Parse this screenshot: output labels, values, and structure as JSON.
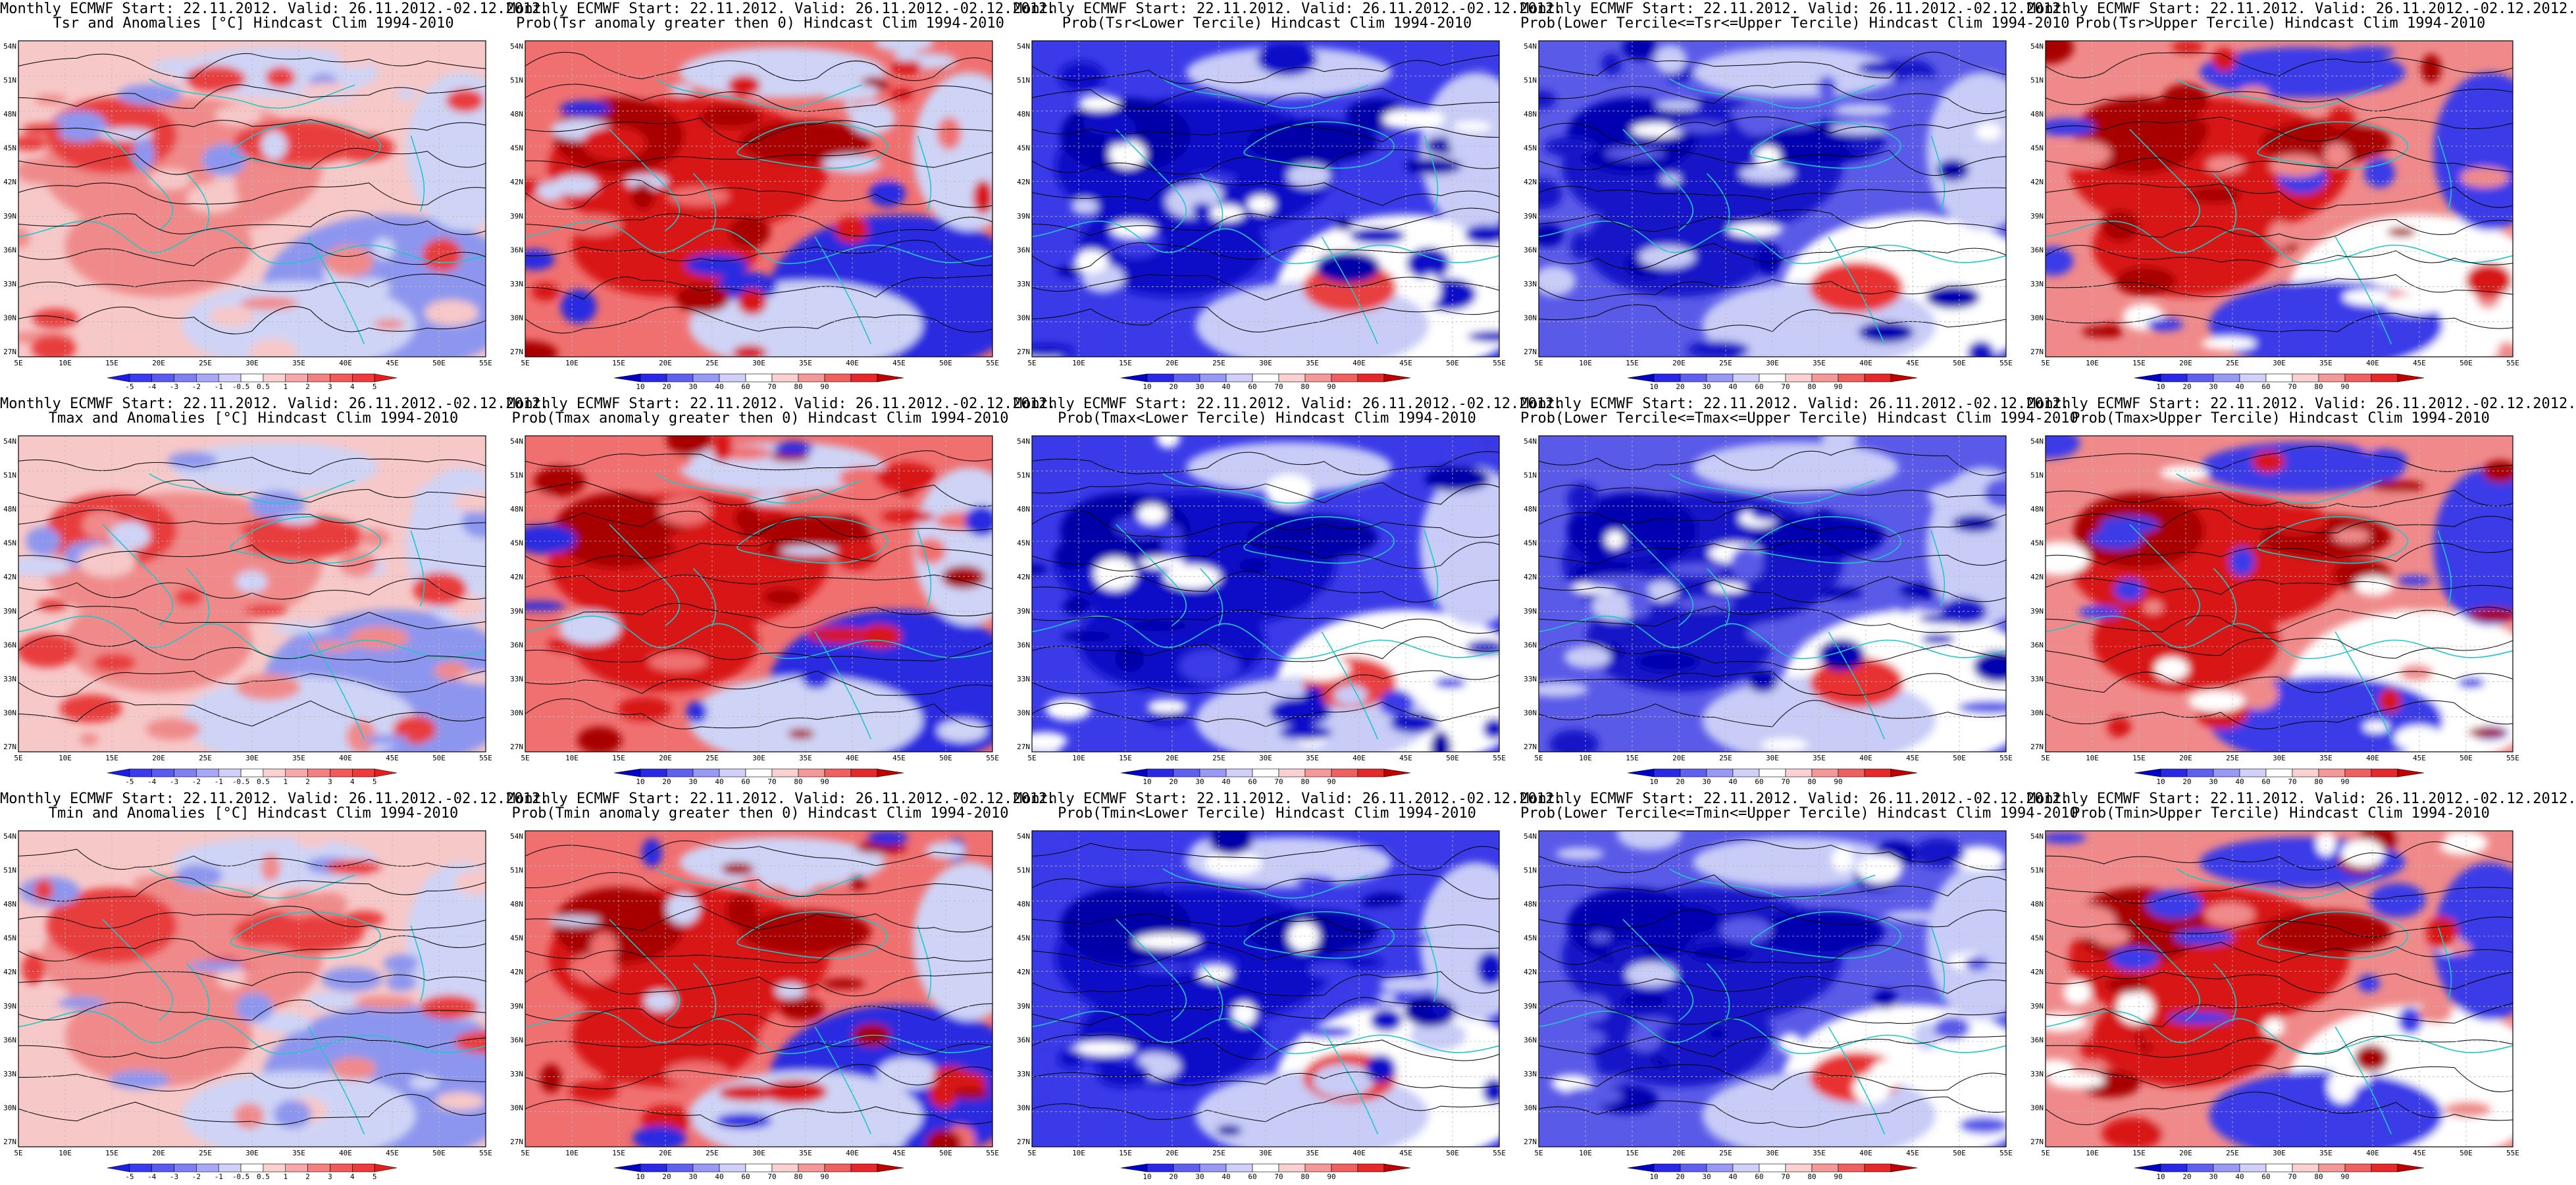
{
  "rows": [
    {
      "variable": "Tsr",
      "panels": [
        {
          "kind": "anom",
          "line1": "Monthly ECMWF Start: 22.11.2012. Valid: 26.11.2012.-02.12.2012.",
          "line2": "Tsr and Anomalies [°C] Hindcast Clim 1994-2010"
        },
        {
          "kind": "pos",
          "line1": "Monthly ECMWF Start: 22.11.2012. Valid: 26.11.2012.-02.12.2012.",
          "line2": "Prob(Tsr anomaly greater then 0) Hindcast Clim 1994-2010"
        },
        {
          "kind": "low",
          "line1": "Monthly ECMWF Start: 22.11.2012. Valid: 26.11.2012.-02.12.2012.",
          "line2": "Prob(Tsr<Lower Tercile) Hindcast Clim 1994-2010"
        },
        {
          "kind": "mid",
          "line1": "Monthly ECMWF Start: 22.11.2012. Valid: 26.11.2012.-02.12.2012.",
          "line2": "Prob(Lower Tercile<=Tsr<=Upper Tercile) Hindcast Clim 1994-2010"
        },
        {
          "kind": "up",
          "line1": "Monthly ECMWF Start: 22.11.2012. Valid: 26.11.2012.-02.12.2012.",
          "line2": "Prob(Tsr>Upper Tercile) Hindcast Clim 1994-2010"
        }
      ]
    },
    {
      "variable": "Tmax",
      "panels": [
        {
          "kind": "anom",
          "line1": "Monthly ECMWF Start: 22.11.2012. Valid: 26.11.2012.-02.12.2012.",
          "line2": "Tmax and Anomalies [°C] Hindcast Clim 1994-2010"
        },
        {
          "kind": "pos",
          "line1": "Monthly ECMWF Start: 22.11.2012. Valid: 26.11.2012.-02.12.2012.",
          "line2": "Prob(Tmax anomaly greater then 0) Hindcast Clim 1994-2010"
        },
        {
          "kind": "low",
          "line1": "Monthly ECMWF Start: 22.11.2012. Valid: 26.11.2012.-02.12.2012.",
          "line2": "Prob(Tmax<Lower Tercile) Hindcast Clim 1994-2010"
        },
        {
          "kind": "mid",
          "line1": "Monthly ECMWF Start: 22.11.2012. Valid: 26.11.2012.-02.12.2012.",
          "line2": "Prob(Lower Tercile<=Tmax<=Upper Tercile) Hindcast Clim 1994-2010"
        },
        {
          "kind": "up",
          "line1": "Monthly ECMWF Start: 22.11.2012. Valid: 26.11.2012.-02.12.2012.",
          "line2": "Prob(Tmax>Upper Tercile) Hindcast Clim 1994-2010"
        }
      ]
    },
    {
      "variable": "Tmin",
      "panels": [
        {
          "kind": "anom",
          "line1": "Monthly ECMWF Start: 22.11.2012. Valid: 26.11.2012.-02.12.2012.",
          "line2": "Tmin and Anomalies [°C] Hindcast Clim 1994-2010"
        },
        {
          "kind": "pos",
          "line1": "Monthly ECMWF Start: 22.11.2012. Valid: 26.11.2012.-02.12.2012.",
          "line2": "Prob(Tmin anomaly greater then 0) Hindcast Clim 1994-2010"
        },
        {
          "kind": "low",
          "line1": "Monthly ECMWF Start: 22.11.2012. Valid: 26.11.2012.-02.12.2012.",
          "line2": "Prob(Tmin<Lower Tercile) Hindcast Clim 1994-2010"
        },
        {
          "kind": "mid",
          "line1": "Monthly ECMWF Start: 22.11.2012. Valid: 26.11.2012.-02.12.2012.",
          "line2": "Prob(Lower Tercile<=Tmin<=Upper Tercile) Hindcast Clim 1994-2010"
        },
        {
          "kind": "up",
          "line1": "Monthly ECMWF Start: 22.11.2012. Valid: 26.11.2012.-02.12.2012.",
          "line2": "Prob(Tmin>Upper Tercile) Hindcast Clim 1994-2010"
        }
      ]
    }
  ],
  "map_axes": {
    "lat_labels": [
      "54N",
      "51N",
      "48N",
      "45N",
      "42N",
      "39N",
      "36N",
      "33N",
      "30N",
      "27N"
    ],
    "lon_labels": [
      "5E",
      "10E",
      "15E",
      "20E",
      "25E",
      "30E",
      "35E",
      "40E",
      "45E",
      "50E",
      "55E"
    ]
  },
  "colorbars": {
    "anom": {
      "labels": [
        "-5",
        "-4",
        "-3",
        "-2",
        "-1",
        "-0.5",
        "0.5",
        "1",
        "2",
        "3",
        "4",
        "5"
      ],
      "colors": [
        "#1c1ce8",
        "#3a3aee",
        "#5a5af2",
        "#8080f5",
        "#a8a8f8",
        "#d0d0fb",
        "#ffffff",
        "#fbd0d0",
        "#f8a8a8",
        "#f58080",
        "#f25a5a",
        "#ee3a3a",
        "#e81c1c"
      ]
    },
    "prob": {
      "labels": [
        "10",
        "20",
        "30",
        "40",
        "60",
        "70",
        "80",
        "90"
      ],
      "colors": [
        "#0000c8",
        "#2828e6",
        "#6060f0",
        "#9898f5",
        "#d0d0fa",
        "#ffffff",
        "#fad0d0",
        "#f59898",
        "#f06060",
        "#e62828",
        "#c00000"
      ]
    }
  },
  "field_colors": {
    "anom": {
      "base": "#f7c8c8",
      "warm": "#f08a8a",
      "hot": "#e83c3c",
      "cool": "#cfd4f6",
      "cold": "#8d96ee"
    },
    "pos": {
      "base": "#f07070",
      "warm": "#d81818",
      "hot": "#a80000",
      "cool": "#cfd4f6",
      "cold": "#2a2ae0"
    },
    "low": {
      "base": "#3a3ae8",
      "warm": "#1010c8",
      "hot": "#0000a8",
      "cool": "#c8ccf6",
      "cold": "#ffffff",
      "alt": "#e84040"
    },
    "mid": {
      "base": "#5a5ae8",
      "warm": "#1818c8",
      "hot": "#0000b0",
      "cool": "#c8ccf6",
      "cold": "#ffffff",
      "alt": "#e83030"
    },
    "up": {
      "base": "#f08a8a",
      "warm": "#d81818",
      "hot": "#a80000",
      "cool": "#3a3ae8",
      "cold": "#ffffff"
    }
  },
  "line_colors": {
    "coast": "#1ec8c8",
    "contour": "#000000",
    "grid": "#bbbbbb"
  }
}
